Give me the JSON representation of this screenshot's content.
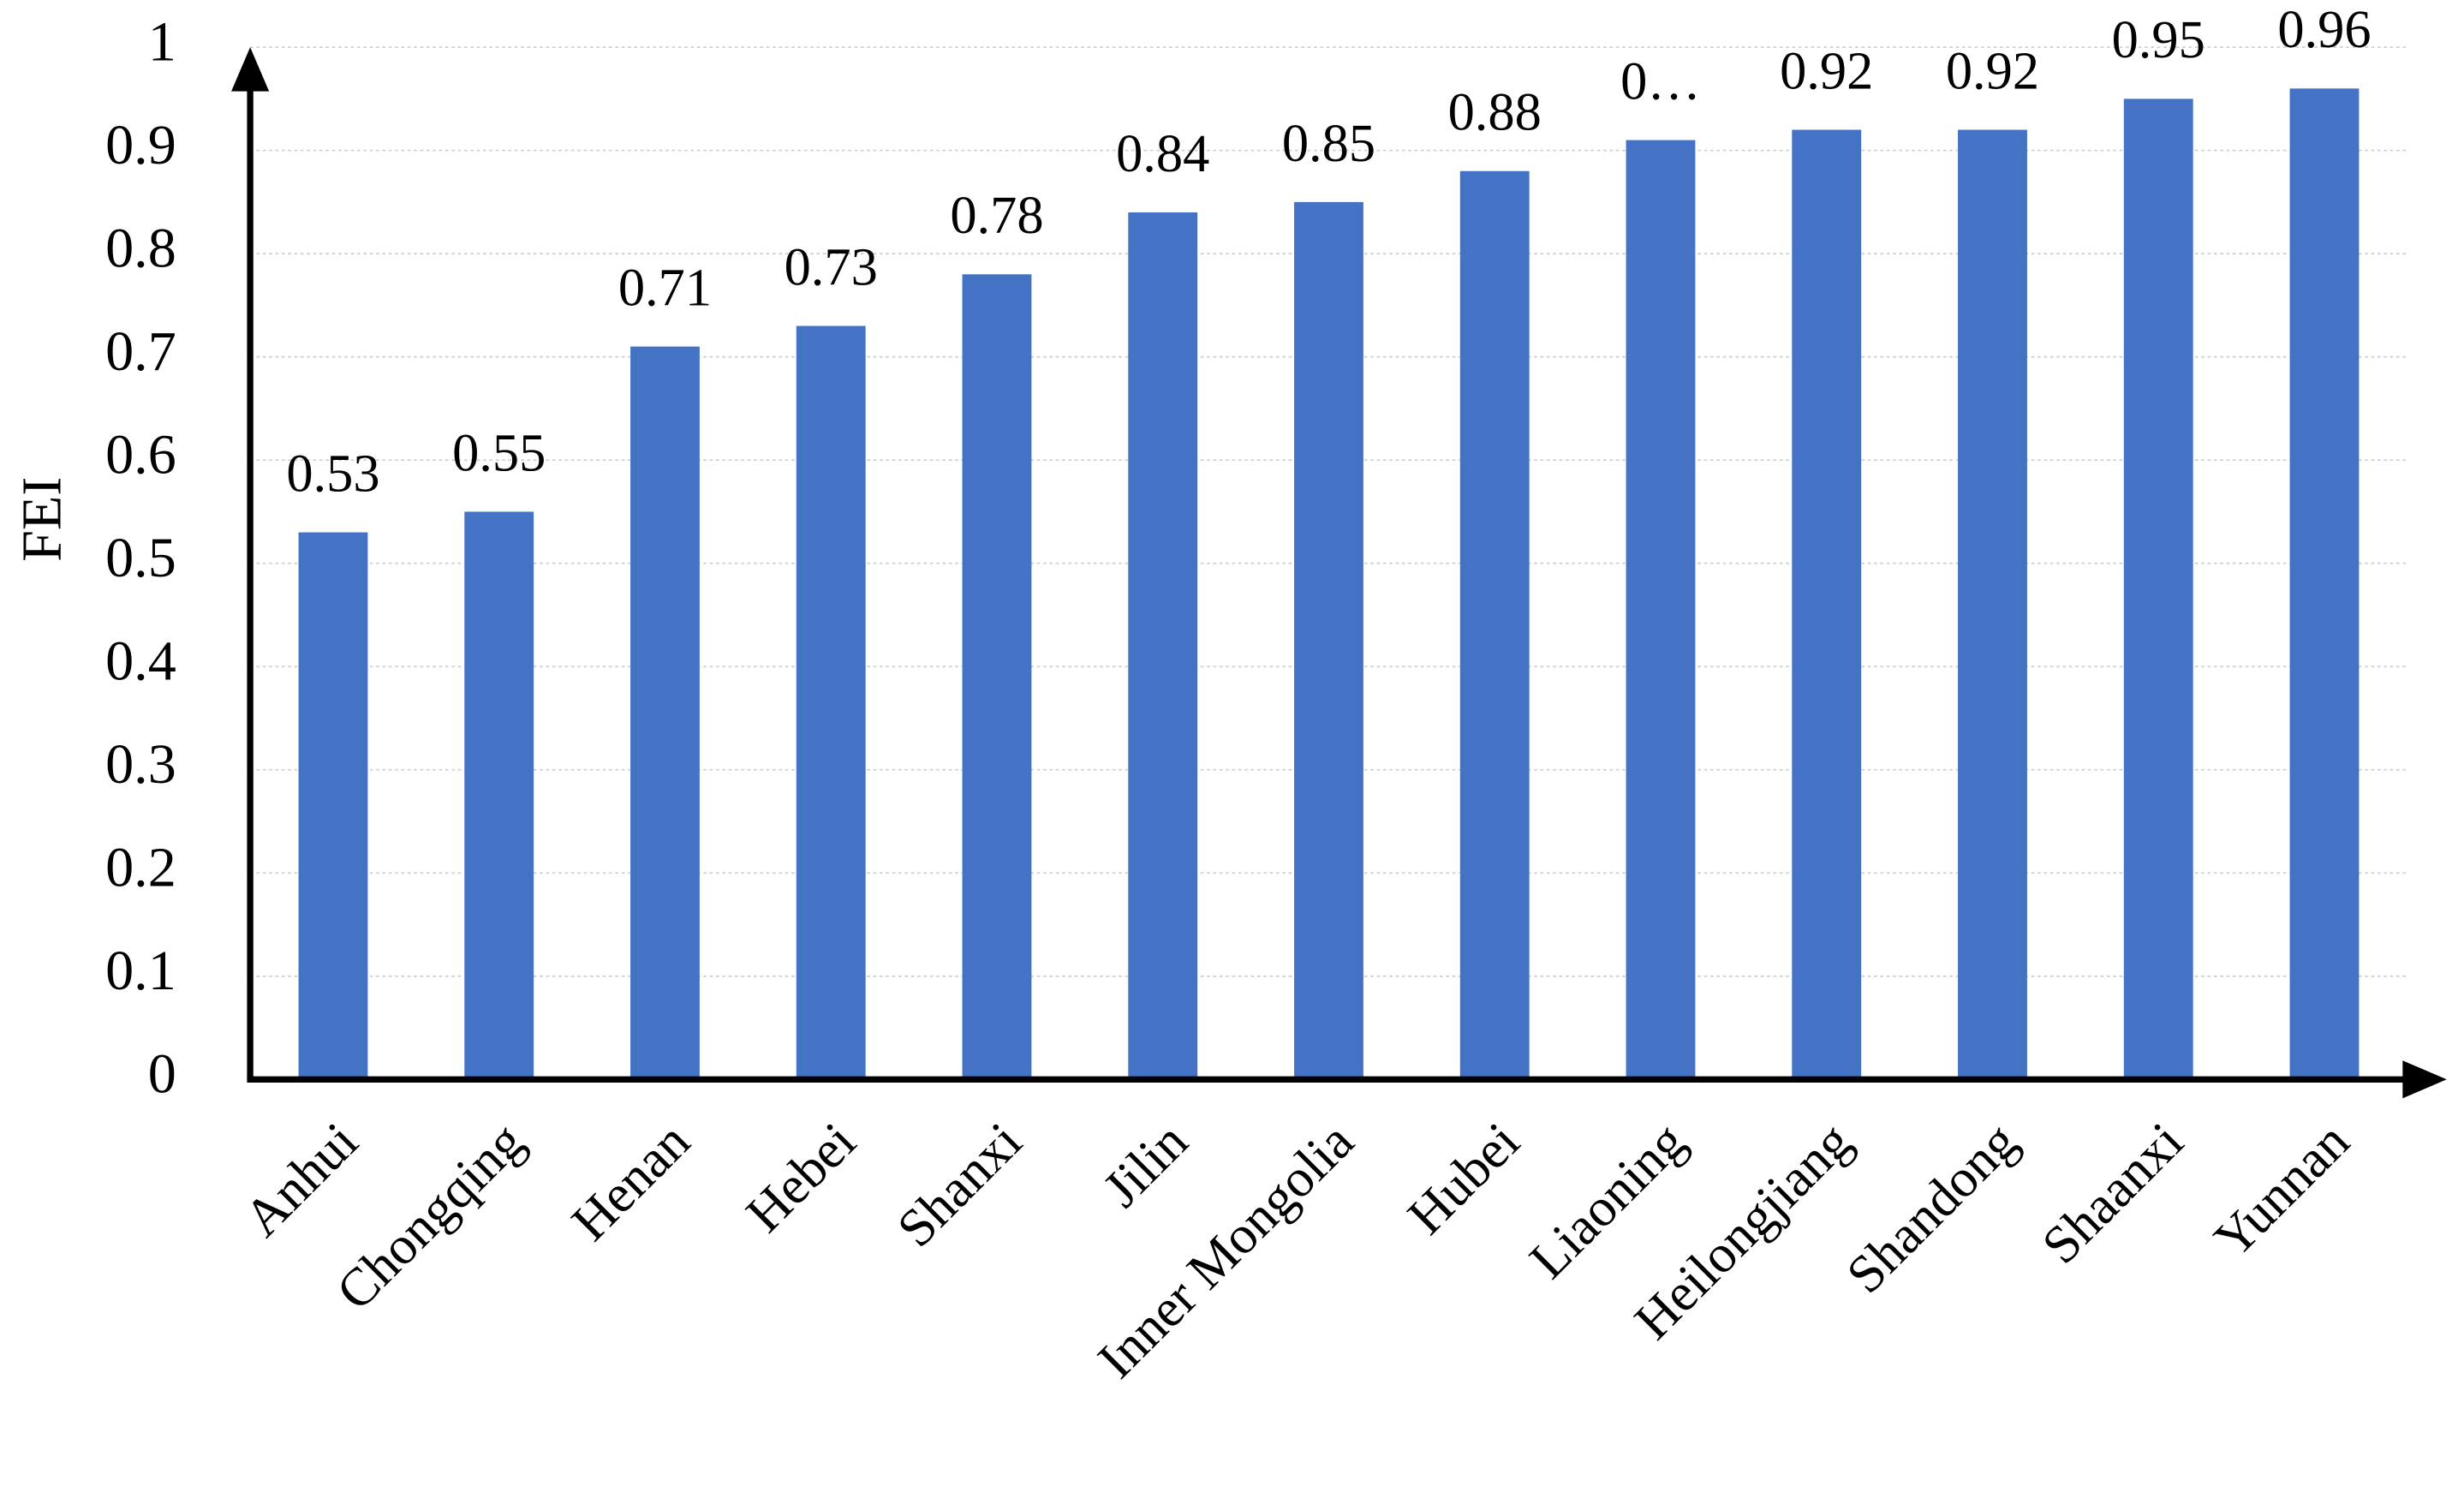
{
  "chart_data": {
    "type": "bar",
    "y_label": "FEI",
    "categories": [
      "Anhui",
      "Chongqing",
      "Henan",
      "Hebei",
      "Shanxi",
      "Jilin",
      "Inner Mongolia",
      "Hubei",
      "Liaoning",
      "Heilongjiang",
      "Shandong",
      "Shaanxi",
      "Yunnan"
    ],
    "values": [
      0.53,
      0.55,
      0.71,
      0.73,
      0.78,
      0.84,
      0.85,
      0.88,
      0.91,
      0.92,
      0.92,
      0.95,
      0.96
    ],
    "value_labels": [
      "0.53",
      "0.55",
      "0.71",
      "0.73",
      "0.78",
      "0.84",
      "0.85",
      "0.88",
      "0…",
      "0.92",
      "0.92",
      "0.95",
      "0.96"
    ],
    "color": "#4472c4",
    "ylim": [
      0,
      1
    ],
    "yticks": [
      0,
      0.1,
      0.2,
      0.3,
      0.4,
      0.5,
      0.6,
      0.7,
      0.8,
      0.9,
      1
    ],
    "grid": true
  }
}
